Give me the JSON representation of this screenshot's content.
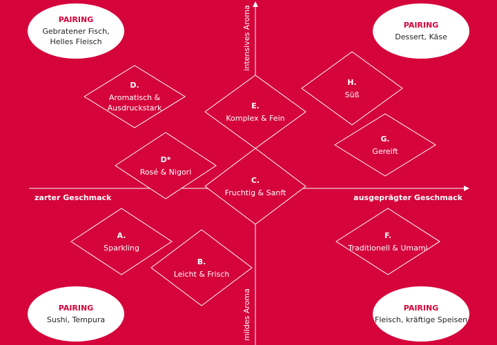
{
  "axes": {
    "top": "intensives Aroma",
    "bottom": "mildes Aroma",
    "left": "zarter Geschmack",
    "right": "ausgeprägter Geschmack"
  },
  "nodes": [
    {
      "letter": "D.",
      "label": [
        "Aromatisch &",
        "Ausdruckstark"
      ]
    },
    {
      "letter": "E.",
      "label": [
        "Komplex & Fein"
      ]
    },
    {
      "letter": "H.",
      "label": [
        "Süß"
      ]
    },
    {
      "letter": "G.",
      "label": [
        "Gereift"
      ]
    },
    {
      "letter": "D*",
      "label": [
        "Rosé & Nigori"
      ]
    },
    {
      "letter": "C.",
      "label": [
        "Fruchtig & Sanft"
      ]
    },
    {
      "letter": "A.",
      "label": [
        "Sparkling"
      ]
    },
    {
      "letter": "B.",
      "label": [
        "Leicht & Frisch"
      ]
    },
    {
      "letter": "F.",
      "label": [
        "Traditionell & Umami"
      ]
    }
  ],
  "pairings": [
    {
      "title": "PAIRING",
      "lines": [
        "Gebratener Fisch,",
        "Helles Fleisch"
      ]
    },
    {
      "title": "PAIRING",
      "lines": [
        "Dessert, Käse"
      ]
    },
    {
      "title": "PAIRING",
      "lines": [
        "Sushi, Tempura"
      ]
    },
    {
      "title": "PAIRING",
      "lines": [
        "Fleisch, kräftige Speisen"
      ]
    }
  ]
}
